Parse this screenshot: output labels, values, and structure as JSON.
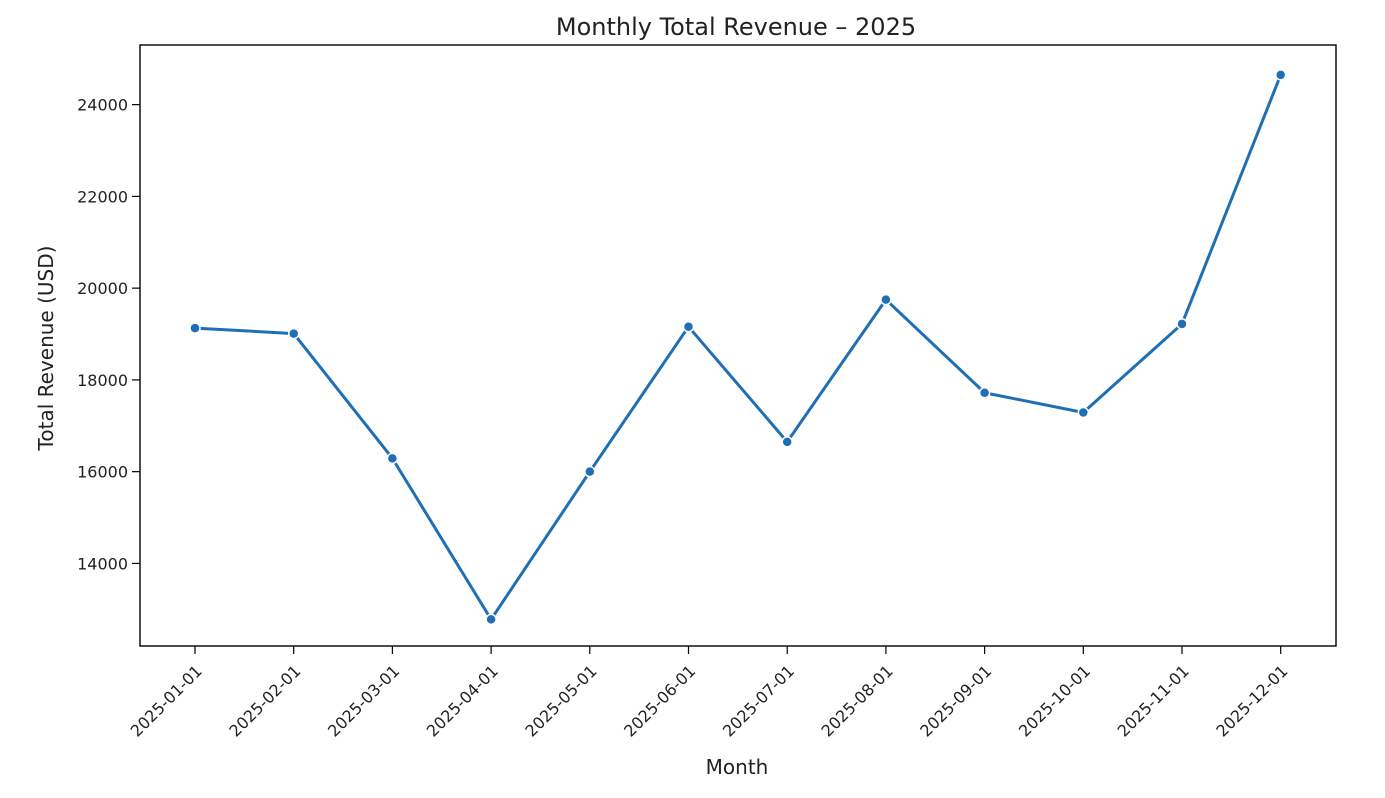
{
  "chart_data": {
    "type": "line",
    "title": "Monthly Total Revenue – 2025",
    "xlabel": "Month",
    "ylabel": "Total Revenue (USD)",
    "categories": [
      "2025-01-01",
      "2025-02-01",
      "2025-03-01",
      "2025-04-01",
      "2025-05-01",
      "2025-06-01",
      "2025-07-01",
      "2025-08-01",
      "2025-09-01",
      "2025-10-01",
      "2025-11-01",
      "2025-12-01"
    ],
    "series": [
      {
        "values": [
          19130,
          19010,
          16290,
          12780,
          16000,
          19160,
          16650,
          19750,
          17720,
          17290,
          19220,
          24650
        ]
      }
    ],
    "yticks": [
      14000,
      16000,
      18000,
      20000,
      22000,
      24000
    ],
    "ylim": [
      12200,
      25300
    ],
    "grid": false,
    "legend": "none",
    "line_color": "#1f6fb4"
  }
}
